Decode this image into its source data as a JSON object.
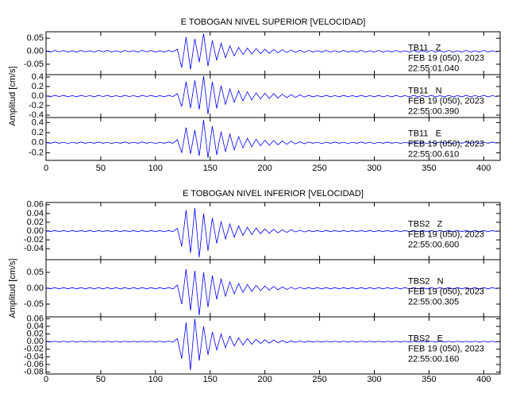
{
  "chart_data": [
    {
      "type": "line",
      "title": "E TOBOGAN NIVEL SUPERIOR [VELOCIDAD]",
      "y_label": "Amplitud [cm/s]",
      "x": [
        0,
        4,
        8,
        12,
        16,
        20,
        24,
        28,
        32,
        36,
        40,
        44,
        48,
        52,
        56,
        60,
        64,
        68,
        72,
        76,
        80,
        84,
        88,
        92,
        96,
        100,
        104,
        108,
        112,
        116,
        120,
        124,
        128,
        132,
        136,
        140,
        144,
        148,
        152,
        156,
        160,
        164,
        168,
        172,
        176,
        180,
        184,
        188,
        192,
        196,
        200,
        204,
        208,
        212,
        216,
        220,
        224,
        228,
        232,
        236,
        240,
        244,
        248,
        252,
        256,
        260,
        264,
        268,
        272,
        276,
        280,
        284,
        288,
        292,
        296,
        300,
        304,
        308,
        312,
        316,
        320,
        324,
        328,
        332,
        336,
        340,
        344,
        348,
        352,
        356,
        360,
        364,
        368,
        372,
        376,
        380,
        384,
        388,
        392,
        396,
        400,
        404,
        408,
        412
      ],
      "xlim": [
        0,
        415
      ],
      "xticks": [
        0,
        50,
        100,
        150,
        200,
        250,
        300,
        350,
        400
      ],
      "panels": [
        {
          "station": "TB11   Z",
          "date": "FEB 19 (050), 2023",
          "time": "22:55:01.040",
          "color": "#0000ff",
          "ylim": [
            -0.09,
            0.075
          ],
          "yticks": [
            {
              "value": 0.05,
              "label": "0.05"
            },
            {
              "value": 0,
              "label": "0.00"
            },
            {
              "value": -0.05,
              "label": "-0.05"
            }
          ],
          "values": [
            0.002,
            -0.003,
            0.003,
            -0.002,
            0.003,
            -0.003,
            0.002,
            -0.003,
            0.003,
            -0.002,
            0.002,
            -0.003,
            0.003,
            -0.002,
            0.003,
            -0.003,
            0.002,
            -0.003,
            0.003,
            -0.002,
            0.002,
            -0.003,
            0.003,
            -0.002,
            0.003,
            -0.003,
            0.002,
            -0.003,
            0.003,
            -0.002,
            0.008,
            -0.063,
            0.055,
            -0.07,
            0.048,
            -0.042,
            0.068,
            -0.058,
            0.042,
            -0.035,
            0.031,
            -0.025,
            0.021,
            -0.018,
            0.015,
            -0.013,
            0.012,
            -0.011,
            0.01,
            -0.009,
            0.008,
            -0.008,
            0.007,
            -0.006,
            0.006,
            -0.005,
            0.005,
            -0.004,
            0.004,
            -0.004,
            0.003,
            -0.003,
            0.002,
            -0.003,
            0.003,
            -0.003,
            0.002,
            -0.003,
            0.003,
            -0.003,
            0.002,
            -0.003,
            0.003,
            -0.003,
            0.002,
            -0.003,
            0.003,
            -0.003,
            0.002,
            -0.003,
            0.003,
            -0.003,
            0.002,
            -0.003,
            0.003,
            -0.003,
            0.002,
            -0.003,
            0.003,
            -0.003,
            0.002,
            -0.003,
            0.003,
            -0.003,
            0.002,
            -0.003,
            0.003,
            -0.003,
            0.002,
            -0.003,
            0.003,
            -0.003,
            0.002,
            -0.003
          ]
        },
        {
          "station": "TB11   N",
          "date": "FEB 19 (050), 2023",
          "time": "22:55:00.390",
          "color": "#0000ff",
          "ylim": [
            -0.45,
            0.45
          ],
          "yticks": [
            {
              "value": 0.4,
              "label": "0.4"
            },
            {
              "value": 0.2,
              "label": "0.2"
            },
            {
              "value": 0,
              "label": "0.0"
            },
            {
              "value": -0.2,
              "label": "-0.2"
            },
            {
              "value": -0.4,
              "label": "-0.4"
            }
          ],
          "values": [
            0.01,
            -0.015,
            0.015,
            -0.01,
            0.015,
            -0.015,
            0.01,
            -0.015,
            0.015,
            -0.01,
            0.01,
            -0.015,
            0.015,
            -0.01,
            0.015,
            -0.015,
            0.01,
            -0.015,
            0.015,
            -0.01,
            0.01,
            -0.015,
            0.015,
            -0.01,
            0.015,
            -0.015,
            0.01,
            -0.015,
            0.015,
            -0.01,
            0.05,
            -0.22,
            0.3,
            -0.25,
            0.33,
            -0.28,
            0.42,
            -0.38,
            0.3,
            -0.26,
            0.22,
            -0.18,
            0.15,
            -0.13,
            0.11,
            -0.1,
            0.09,
            -0.08,
            0.07,
            -0.06,
            0.06,
            -0.05,
            0.05,
            -0.04,
            0.04,
            -0.035,
            0.03,
            -0.03,
            0.025,
            -0.02,
            0.015,
            -0.015,
            0.01,
            -0.015,
            0.015,
            -0.015,
            0.01,
            -0.015,
            0.015,
            -0.015,
            0.01,
            -0.015,
            0.015,
            -0.015,
            0.01,
            -0.015,
            0.015,
            -0.015,
            0.01,
            -0.015,
            0.015,
            -0.015,
            0.01,
            -0.015,
            0.015,
            -0.015,
            0.01,
            -0.015,
            0.015,
            -0.015,
            0.01,
            -0.015,
            0.015,
            -0.015,
            0.01,
            -0.015,
            0.015,
            -0.015,
            0.01,
            -0.015,
            0.015,
            -0.015,
            0.01,
            -0.015
          ]
        },
        {
          "station": "TB11   E",
          "date": "FEB 19 (050), 2023",
          "time": "22:55:00.610",
          "color": "#0000ff",
          "ylim": [
            -0.35,
            0.5
          ],
          "yticks": [
            {
              "value": 0.4,
              "label": "0.4"
            },
            {
              "value": 0.2,
              "label": "0.2"
            },
            {
              "value": 0,
              "label": "0.0"
            },
            {
              "value": -0.2,
              "label": "-0.2"
            }
          ],
          "values": [
            0.01,
            -0.01,
            0.015,
            -0.01,
            0.01,
            -0.015,
            0.01,
            -0.01,
            0.015,
            -0.01,
            0.01,
            -0.01,
            0.015,
            -0.01,
            0.01,
            -0.015,
            0.01,
            -0.01,
            0.015,
            -0.01,
            0.01,
            -0.01,
            0.015,
            -0.01,
            0.01,
            -0.015,
            0.01,
            -0.01,
            0.015,
            -0.01,
            0.06,
            -0.2,
            0.3,
            -0.22,
            0.25,
            -0.26,
            0.45,
            -0.3,
            0.33,
            -0.24,
            0.22,
            -0.18,
            0.17,
            -0.14,
            0.12,
            -0.1,
            0.09,
            -0.08,
            0.07,
            -0.06,
            0.05,
            -0.05,
            0.045,
            -0.04,
            0.035,
            -0.03,
            0.03,
            -0.025,
            0.02,
            -0.02,
            0.015,
            -0.01,
            0.01,
            -0.015,
            0.01,
            -0.01,
            0.015,
            -0.01,
            0.01,
            -0.015,
            0.01,
            -0.01,
            0.015,
            -0.01,
            0.01,
            -0.015,
            0.01,
            -0.01,
            0.015,
            -0.01,
            0.01,
            -0.015,
            0.01,
            -0.01,
            0.015,
            -0.01,
            0.01,
            -0.015,
            0.01,
            -0.01,
            0.015,
            -0.01,
            0.01,
            -0.015,
            0.01,
            -0.01,
            0.015,
            -0.01,
            0.01,
            -0.015,
            0.01,
            -0.01,
            0.015,
            -0.01
          ]
        }
      ]
    },
    {
      "type": "line",
      "title": "E TOBOGAN NIVEL INFERIOR [VELOCIDAD]",
      "y_label": "Amplitud [cm/s]",
      "x": [
        0,
        4,
        8,
        12,
        16,
        20,
        24,
        28,
        32,
        36,
        40,
        44,
        48,
        52,
        56,
        60,
        64,
        68,
        72,
        76,
        80,
        84,
        88,
        92,
        96,
        100,
        104,
        108,
        112,
        116,
        120,
        124,
        128,
        132,
        136,
        140,
        144,
        148,
        152,
        156,
        160,
        164,
        168,
        172,
        176,
        180,
        184,
        188,
        192,
        196,
        200,
        204,
        208,
        212,
        216,
        220,
        224,
        228,
        232,
        236,
        240,
        244,
        248,
        252,
        256,
        260,
        264,
        268,
        272,
        276,
        280,
        284,
        288,
        292,
        296,
        300,
        304,
        308,
        312,
        316,
        320,
        324,
        328,
        332,
        336,
        340,
        344,
        348,
        352,
        356,
        360,
        364,
        368,
        372,
        376,
        380,
        384,
        388,
        392,
        396,
        400,
        404,
        408,
        412
      ],
      "xlim": [
        0,
        415
      ],
      "xticks": [
        0,
        50,
        100,
        150,
        200,
        250,
        300,
        350,
        400
      ],
      "panels": [
        {
          "station": "TBS2   Z",
          "date": "FEB 19 (050), 2023",
          "time": "22:55:00.600",
          "color": "#0000ff",
          "ylim": [
            -0.065,
            0.065
          ],
          "yticks": [
            {
              "value": 0.06,
              "label": "0.06"
            },
            {
              "value": 0.04,
              "label": "0.04"
            },
            {
              "value": 0.02,
              "label": "0.02"
            },
            {
              "value": 0,
              "label": "0.00"
            },
            {
              "value": -0.02,
              "label": "-0.02"
            },
            {
              "value": -0.04,
              "label": "-0.04"
            }
          ],
          "values": [
            0.001,
            -0.001,
            0.001,
            -0.001,
            0.001,
            -0.001,
            0.001,
            -0.001,
            0.001,
            -0.001,
            0.001,
            -0.001,
            0.001,
            -0.001,
            0.001,
            -0.001,
            0.001,
            -0.001,
            0.001,
            -0.001,
            0.001,
            -0.001,
            0.001,
            -0.001,
            0.001,
            -0.001,
            0.001,
            -0.001,
            0.001,
            -0.001,
            0.006,
            -0.035,
            0.048,
            -0.05,
            0.052,
            -0.06,
            0.04,
            -0.045,
            0.03,
            -0.028,
            0.022,
            -0.018,
            0.016,
            -0.014,
            0.012,
            -0.01,
            0.009,
            -0.008,
            0.007,
            -0.006,
            0.005,
            -0.005,
            0.004,
            -0.004,
            0.003,
            -0.003,
            0.003,
            -0.002,
            0.002,
            -0.002,
            0.001,
            -0.001,
            0.001,
            -0.001,
            0.001,
            -0.001,
            0.001,
            -0.001,
            0.001,
            -0.001,
            0.001,
            -0.001,
            0.001,
            -0.001,
            0.001,
            -0.001,
            0.001,
            -0.001,
            0.001,
            -0.001,
            0.001,
            -0.001,
            0.001,
            -0.001,
            0.001,
            -0.001,
            0.001,
            -0.001,
            0.001,
            -0.001,
            0.001,
            -0.001,
            0.001,
            -0.001,
            0.001,
            -0.001,
            0.001,
            -0.001,
            0.001,
            -0.001,
            0.001,
            -0.001,
            0.001,
            -0.001
          ]
        },
        {
          "station": "TBS2   N",
          "date": "FEB 19 (050), 2023",
          "time": "22:55:00.305",
          "color": "#0000ff",
          "ylim": [
            -0.09,
            0.09
          ],
          "yticks": [
            {
              "value": 0.05,
              "label": "0.05"
            },
            {
              "value": 0,
              "label": "0.00"
            },
            {
              "value": -0.05,
              "label": "-0.05"
            }
          ],
          "values": [
            0.002,
            -0.002,
            0.002,
            -0.002,
            0.002,
            -0.002,
            0.002,
            -0.002,
            0.002,
            -0.002,
            0.002,
            -0.002,
            0.002,
            -0.002,
            0.002,
            -0.002,
            0.002,
            -0.002,
            0.002,
            -0.002,
            0.002,
            -0.002,
            0.002,
            -0.002,
            0.002,
            -0.002,
            0.002,
            -0.002,
            0.002,
            -0.002,
            0.01,
            -0.05,
            0.06,
            -0.07,
            0.055,
            -0.085,
            0.05,
            -0.06,
            0.04,
            -0.035,
            0.03,
            -0.025,
            0.02,
            -0.018,
            0.015,
            -0.013,
            0.012,
            -0.01,
            0.009,
            -0.008,
            0.007,
            -0.006,
            0.006,
            -0.005,
            0.004,
            -0.004,
            0.003,
            -0.003,
            0.003,
            -0.002,
            0.002,
            -0.002,
            0.002,
            -0.002,
            0.002,
            -0.002,
            0.002,
            -0.002,
            0.002,
            -0.002,
            0.002,
            -0.002,
            0.002,
            -0.002,
            0.002,
            -0.002,
            0.002,
            -0.002,
            0.002,
            -0.002,
            0.002,
            -0.002,
            0.002,
            -0.002,
            0.002,
            -0.002,
            0.002,
            -0.002,
            0.002,
            -0.002,
            0.002,
            -0.002,
            0.002,
            -0.002,
            0.002,
            -0.002,
            0.002,
            -0.002,
            0.002,
            -0.002,
            0.002,
            -0.002,
            0.002,
            -0.002
          ]
        },
        {
          "station": "TBS2   E",
          "date": "FEB 19 (050), 2023",
          "time": "22:55:00.160",
          "color": "#0000ff",
          "ylim": [
            -0.085,
            0.065
          ],
          "yticks": [
            {
              "value": 0.06,
              "label": "0.06"
            },
            {
              "value": 0.04,
              "label": "0.04"
            },
            {
              "value": 0.02,
              "label": "0.02"
            },
            {
              "value": 0,
              "label": "0.00"
            },
            {
              "value": -0.02,
              "label": "-0.02"
            },
            {
              "value": -0.04,
              "label": "-0.04"
            },
            {
              "value": -0.06,
              "label": "-0.06"
            },
            {
              "value": -0.08,
              "label": "-0.08"
            }
          ],
          "values": [
            0.001,
            -0.001,
            0.001,
            -0.001,
            0.001,
            -0.001,
            0.001,
            -0.001,
            0.001,
            -0.001,
            0.001,
            -0.001,
            0.001,
            -0.001,
            0.001,
            -0.001,
            0.001,
            -0.001,
            0.001,
            -0.001,
            0.001,
            -0.001,
            0.001,
            -0.001,
            0.001,
            -0.001,
            0.001,
            -0.001,
            0.001,
            -0.001,
            0.008,
            -0.045,
            0.05,
            -0.075,
            0.06,
            -0.05,
            0.04,
            -0.035,
            0.025,
            -0.022,
            0.02,
            -0.016,
            0.014,
            -0.012,
            0.01,
            -0.009,
            0.008,
            -0.007,
            0.006,
            -0.005,
            0.005,
            -0.004,
            0.004,
            -0.003,
            0.003,
            -0.003,
            0.002,
            -0.002,
            0.002,
            -0.002,
            0.001,
            -0.001,
            0.001,
            -0.001,
            0.001,
            -0.001,
            0.001,
            -0.001,
            0.001,
            -0.001,
            0.001,
            -0.001,
            0.001,
            -0.001,
            0.001,
            -0.001,
            0.001,
            -0.001,
            0.001,
            -0.001,
            0.001,
            -0.001,
            0.001,
            -0.001,
            0.001,
            -0.001,
            0.001,
            -0.001,
            0.001,
            -0.001,
            0.001,
            -0.001,
            0.001,
            -0.001,
            0.001,
            -0.001,
            0.001,
            -0.001,
            0.001,
            -0.001,
            0.001,
            -0.001,
            0.001,
            -0.001
          ]
        }
      ]
    }
  ]
}
